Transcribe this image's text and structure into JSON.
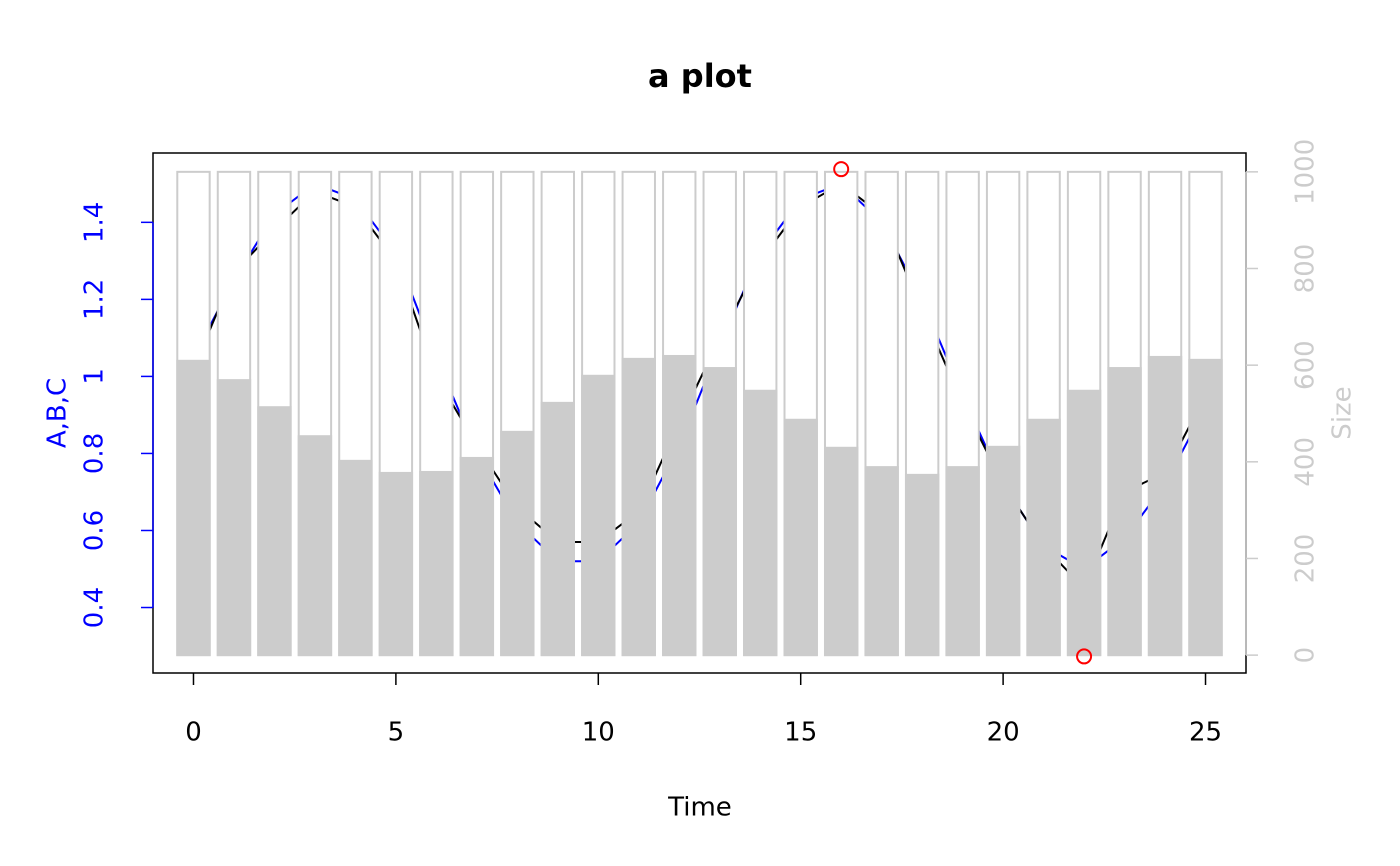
{
  "chart_data": {
    "type": "combo",
    "title": "a plot",
    "xlabel": "Time",
    "ylabel": "A,B,C",
    "y2label": "Size",
    "x": [
      0,
      1,
      2,
      3,
      4,
      5,
      6,
      7,
      8,
      9,
      10,
      11,
      12,
      13,
      14,
      15,
      16,
      17,
      18,
      19,
      20,
      21,
      22,
      23,
      24,
      25
    ],
    "xlim": [
      -1,
      26
    ],
    "xticks": [
      0,
      5,
      10,
      15,
      20,
      25
    ],
    "ylim": [
      0.23,
      1.58
    ],
    "yticks": [
      0.4,
      0.6,
      0.8,
      1,
      1.2,
      1.4
    ],
    "y2lim": [
      -37,
      1039
    ],
    "y2ticks": [
      0,
      200,
      400,
      600,
      800,
      1000
    ],
    "y_axis_color": "#0000ff",
    "y2_axis_color": "#cccccc",
    "series": [
      {
        "type": "line",
        "color": "#0000ff",
        "values": [
          1.05,
          1.25,
          1.42,
          1.5,
          1.46,
          1.32,
          1.05,
          0.8,
          0.62,
          0.52,
          0.52,
          0.62,
          0.82,
          1.08,
          1.32,
          1.46,
          1.5,
          1.4,
          1.2,
          0.95,
          0.72,
          0.56,
          0.5,
          0.58,
          0.72,
          0.92
        ]
      },
      {
        "type": "line",
        "color": "#000000",
        "values": [
          1.02,
          1.27,
          1.38,
          1.48,
          1.44,
          1.3,
          1.0,
          0.82,
          0.66,
          0.57,
          0.57,
          0.65,
          0.88,
          1.1,
          1.3,
          1.44,
          1.5,
          1.42,
          1.17,
          0.93,
          0.72,
          0.56,
          0.45,
          0.7,
          0.75,
          0.95
        ]
      },
      {
        "type": "bar",
        "axis": "y2",
        "color": "#ffffff",
        "values": [
          1000,
          1000,
          1000,
          1000,
          1000,
          1000,
          1000,
          1000,
          1000,
          1000,
          1000,
          1000,
          1000,
          1000,
          1000,
          1000,
          1000,
          1000,
          1000,
          1000,
          1000,
          1000,
          1000,
          1000,
          1000,
          1000
        ]
      },
      {
        "type": "bar",
        "axis": "y2",
        "color": "#cccccc",
        "values": [
          609,
          569,
          513,
          453,
          402,
          377,
          379,
          408,
          462,
          522,
          578,
          613,
          619,
          594,
          547,
          487,
          429,
          389,
          373,
          389,
          431,
          487,
          547,
          594,
          617,
          611
        ]
      },
      {
        "type": "points",
        "color": "#ff0000",
        "values": [
          null,
          null,
          null,
          null,
          null,
          null,
          null,
          null,
          null,
          null,
          null,
          null,
          null,
          null,
          null,
          null,
          1.538,
          null,
          null,
          null,
          null,
          null,
          0.273,
          null,
          null,
          null
        ]
      }
    ]
  }
}
